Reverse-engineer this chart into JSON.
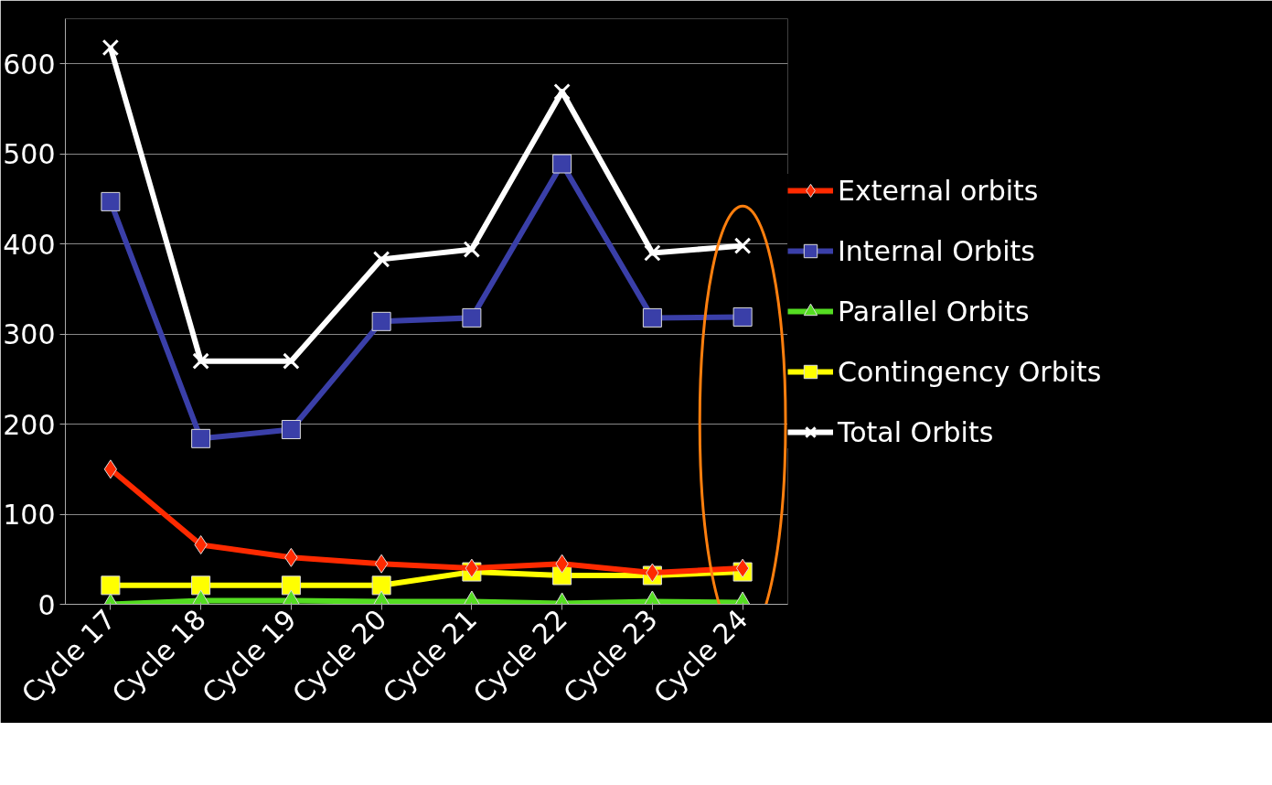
{
  "chart_data": {
    "type": "line",
    "categories": [
      "Cycle 17",
      "Cycle 18",
      "Cycle 19",
      "Cycle 20",
      "Cycle 21",
      "Cycle 22",
      "Cycle 23",
      "Cycle 24"
    ],
    "series": [
      {
        "name": "External orbits",
        "color": "#ff2a00",
        "marker": "diamond",
        "values": [
          150,
          66,
          52,
          45,
          40,
          45,
          35,
          40
        ]
      },
      {
        "name": "Internal Orbits",
        "color": "#3a3fa8",
        "marker": "square",
        "values": [
          447,
          184,
          194,
          314,
          318,
          489,
          318,
          319
        ]
      },
      {
        "name": "Parallel Orbits",
        "color": "#55dd22",
        "marker": "triangle",
        "values": [
          0,
          4,
          4,
          3,
          3,
          1,
          3,
          2
        ]
      },
      {
        "name": "Contingency Orbits",
        "color": "#ffff00",
        "marker": "square",
        "values": [
          21,
          21,
          21,
          21,
          36,
          32,
          32,
          36
        ]
      },
      {
        "name": "Total Orbits",
        "color": "#ffffff",
        "marker": "cross",
        "values": [
          618,
          270,
          270,
          383,
          394,
          569,
          390,
          398
        ]
      }
    ],
    "ylim": [
      0,
      650
    ],
    "yticks": [
      0,
      100,
      200,
      300,
      400,
      500,
      600
    ],
    "grid": "y",
    "legend": "right"
  }
}
